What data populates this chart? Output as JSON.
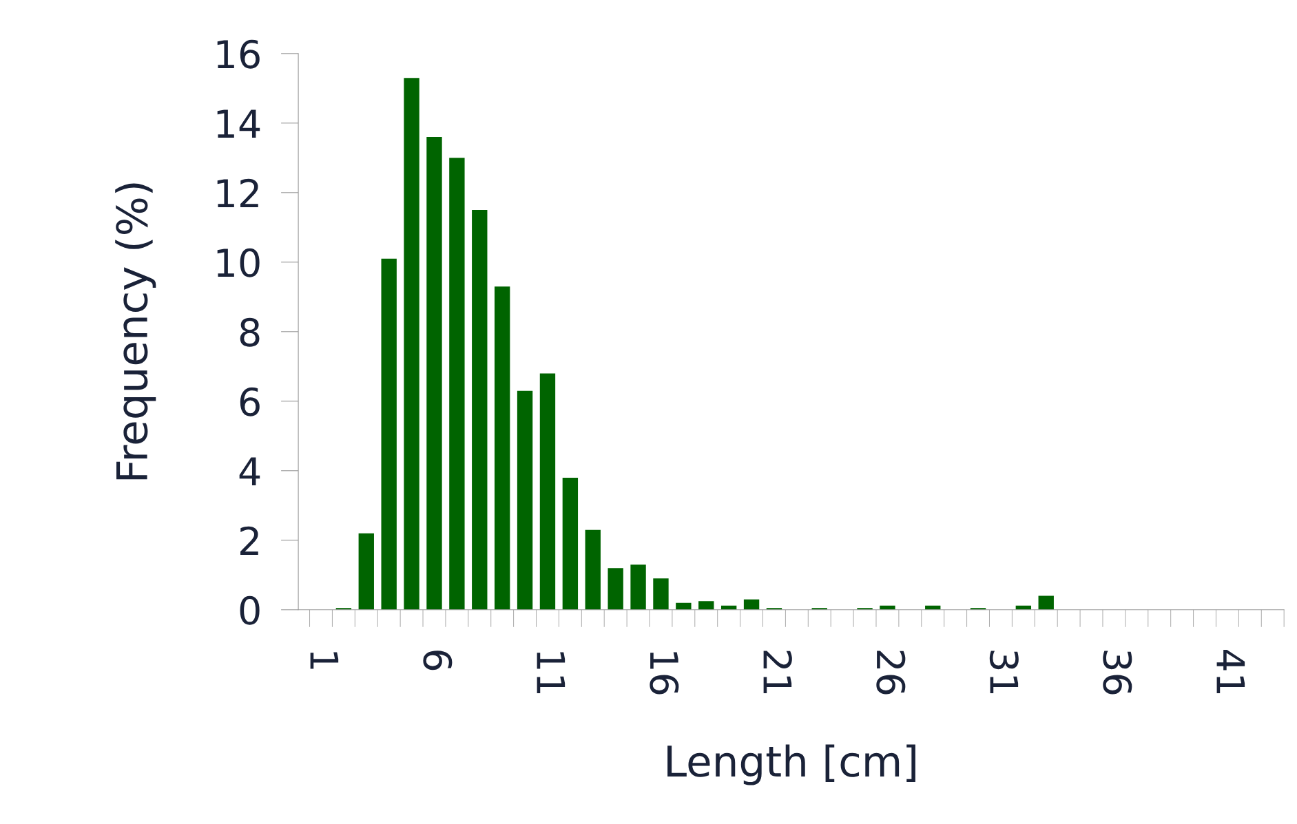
{
  "chart_data": {
    "type": "bar",
    "xlabel": "Length [cm]",
    "ylabel": "Frequency (%)",
    "categories": [
      "1",
      null,
      null,
      null,
      null,
      "6",
      null,
      null,
      null,
      null,
      "11",
      null,
      null,
      null,
      null,
      "16",
      null,
      null,
      null,
      null,
      "21",
      null,
      null,
      null,
      null,
      "26",
      null,
      null,
      null,
      null,
      "31",
      null,
      null,
      null,
      null,
      "36",
      null,
      null,
      null,
      null,
      "41",
      null,
      null
    ],
    "values": [
      0,
      0.05,
      2.2,
      10.1,
      15.3,
      13.6,
      13.0,
      11.5,
      9.3,
      6.3,
      6.8,
      3.8,
      2.3,
      1.2,
      1.3,
      0.9,
      0.2,
      0.25,
      0.12,
      0.3,
      0.05,
      0,
      0.05,
      0,
      0.05,
      0.12,
      0,
      0.12,
      0,
      0.05,
      0,
      0.12,
      0.4,
      0,
      0,
      0,
      0,
      0,
      0,
      0,
      0,
      0,
      0
    ],
    "color": "#006400",
    "ylim": [
      0,
      16
    ],
    "yticks": [
      0,
      2,
      4,
      6,
      8,
      10,
      12,
      14,
      16
    ],
    "grid": false
  }
}
